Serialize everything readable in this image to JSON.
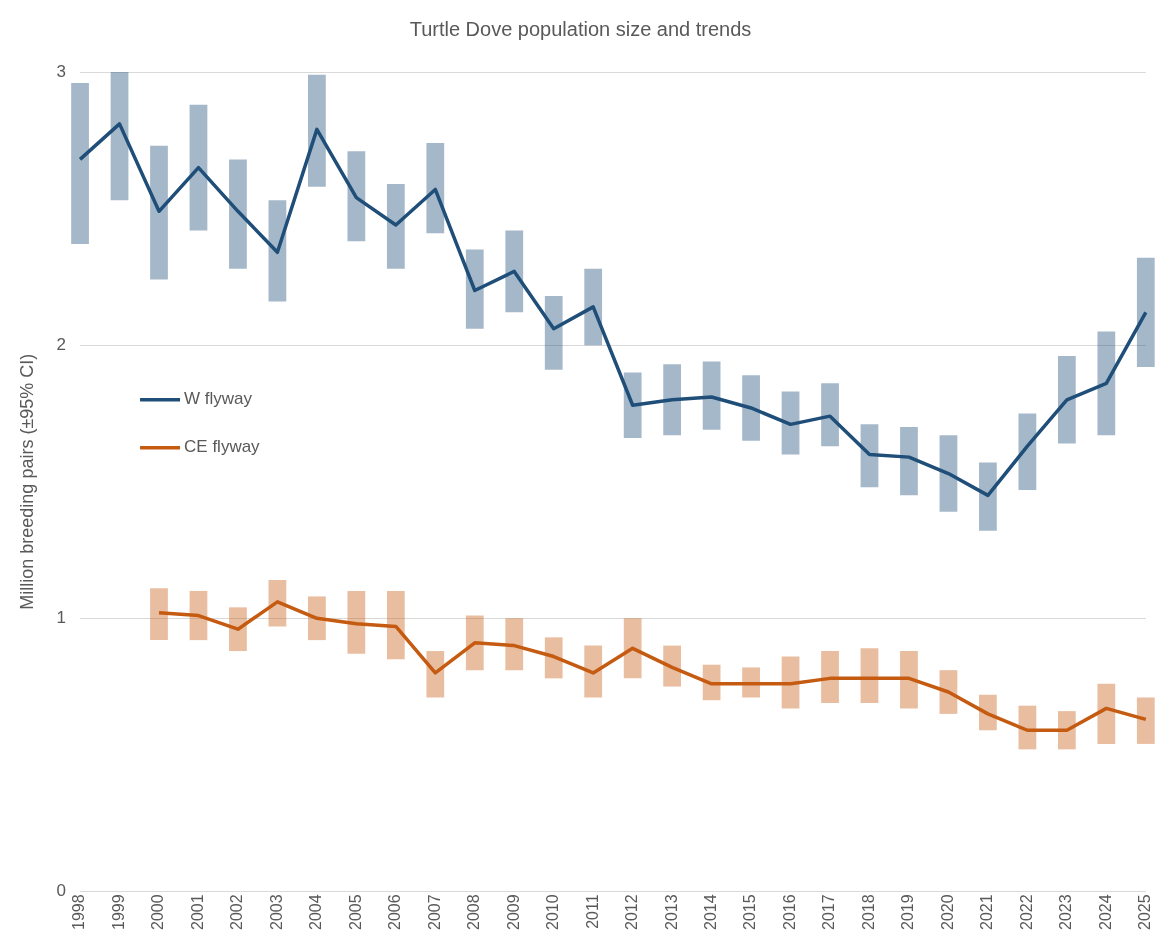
{
  "chart_data": {
    "type": "line",
    "title": "Turtle Dove population size and trends",
    "ylabel": "Million breeding pairs (±95% CI)",
    "categories": [
      "1998",
      "1999",
      "2000",
      "2001",
      "2002",
      "2003",
      "2004",
      "2005",
      "2006",
      "2007",
      "2008",
      "2009",
      "2010",
      "2011",
      "2012",
      "2013",
      "2014",
      "2015",
      "2016",
      "2017",
      "2018",
      "2019",
      "2020",
      "2021",
      "2022",
      "2023",
      "2024",
      "2025"
    ],
    "series": [
      {
        "name": "W flyway",
        "color": "#1f4e79",
        "values": [
          2.68,
          2.81,
          2.49,
          2.65,
          2.49,
          2.34,
          2.79,
          2.54,
          2.44,
          2.57,
          2.2,
          2.27,
          2.06,
          2.14,
          1.78,
          1.8,
          1.81,
          1.77,
          1.71,
          1.74,
          1.6,
          1.59,
          1.53,
          1.45,
          1.63,
          1.8,
          1.86,
          2.12
        ],
        "errors": [
          [
            2.37,
            2.96
          ],
          [
            2.53,
            3.0
          ],
          [
            2.24,
            2.73
          ],
          [
            2.42,
            2.88
          ],
          [
            2.28,
            2.68
          ],
          [
            2.16,
            2.53
          ],
          [
            2.58,
            2.99
          ],
          [
            2.38,
            2.71
          ],
          [
            2.28,
            2.59
          ],
          [
            2.41,
            2.74
          ],
          [
            2.06,
            2.35
          ],
          [
            2.12,
            2.42
          ],
          [
            1.91,
            2.18
          ],
          [
            2.0,
            2.28
          ],
          [
            1.66,
            1.9
          ],
          [
            1.67,
            1.93
          ],
          [
            1.69,
            1.94
          ],
          [
            1.65,
            1.89
          ],
          [
            1.6,
            1.83
          ],
          [
            1.63,
            1.86
          ],
          [
            1.48,
            1.71
          ],
          [
            1.45,
            1.7
          ],
          [
            1.39,
            1.67
          ],
          [
            1.32,
            1.57
          ],
          [
            1.47,
            1.75
          ],
          [
            1.64,
            1.96
          ],
          [
            1.67,
            2.05
          ],
          [
            1.92,
            2.32
          ]
        ]
      },
      {
        "name": "CE flyway",
        "color": "#c55a11",
        "values": [
          null,
          null,
          1.02,
          1.01,
          0.96,
          1.06,
          1.0,
          0.98,
          0.97,
          0.8,
          0.91,
          0.9,
          0.86,
          0.8,
          0.89,
          0.82,
          0.76,
          0.76,
          0.76,
          0.78,
          0.78,
          0.78,
          0.73,
          0.65,
          0.59,
          0.59,
          0.67,
          0.63
        ],
        "errors": [
          null,
          null,
          [
            0.92,
            1.11
          ],
          [
            0.92,
            1.1
          ],
          [
            0.88,
            1.04
          ],
          [
            0.97,
            1.14
          ],
          [
            0.92,
            1.08
          ],
          [
            0.87,
            1.1
          ],
          [
            0.85,
            1.1
          ],
          [
            0.71,
            0.88
          ],
          [
            0.81,
            1.01
          ],
          [
            0.81,
            1.0
          ],
          [
            0.78,
            0.93
          ],
          [
            0.71,
            0.9
          ],
          [
            0.78,
            1.0
          ],
          [
            0.75,
            0.9
          ],
          [
            0.7,
            0.83
          ],
          [
            0.71,
            0.82
          ],
          [
            0.67,
            0.86
          ],
          [
            0.69,
            0.88
          ],
          [
            0.69,
            0.89
          ],
          [
            0.67,
            0.88
          ],
          [
            0.65,
            0.81
          ],
          [
            0.59,
            0.72
          ],
          [
            0.52,
            0.68
          ],
          [
            0.52,
            0.66
          ],
          [
            0.54,
            0.76
          ],
          [
            0.54,
            0.71
          ]
        ]
      }
    ],
    "ylim": [
      0,
      3
    ],
    "yticks": [
      0,
      1,
      2,
      3
    ],
    "grid": "y",
    "legend": "left",
    "marker": "none",
    "line_style": "solid"
  }
}
